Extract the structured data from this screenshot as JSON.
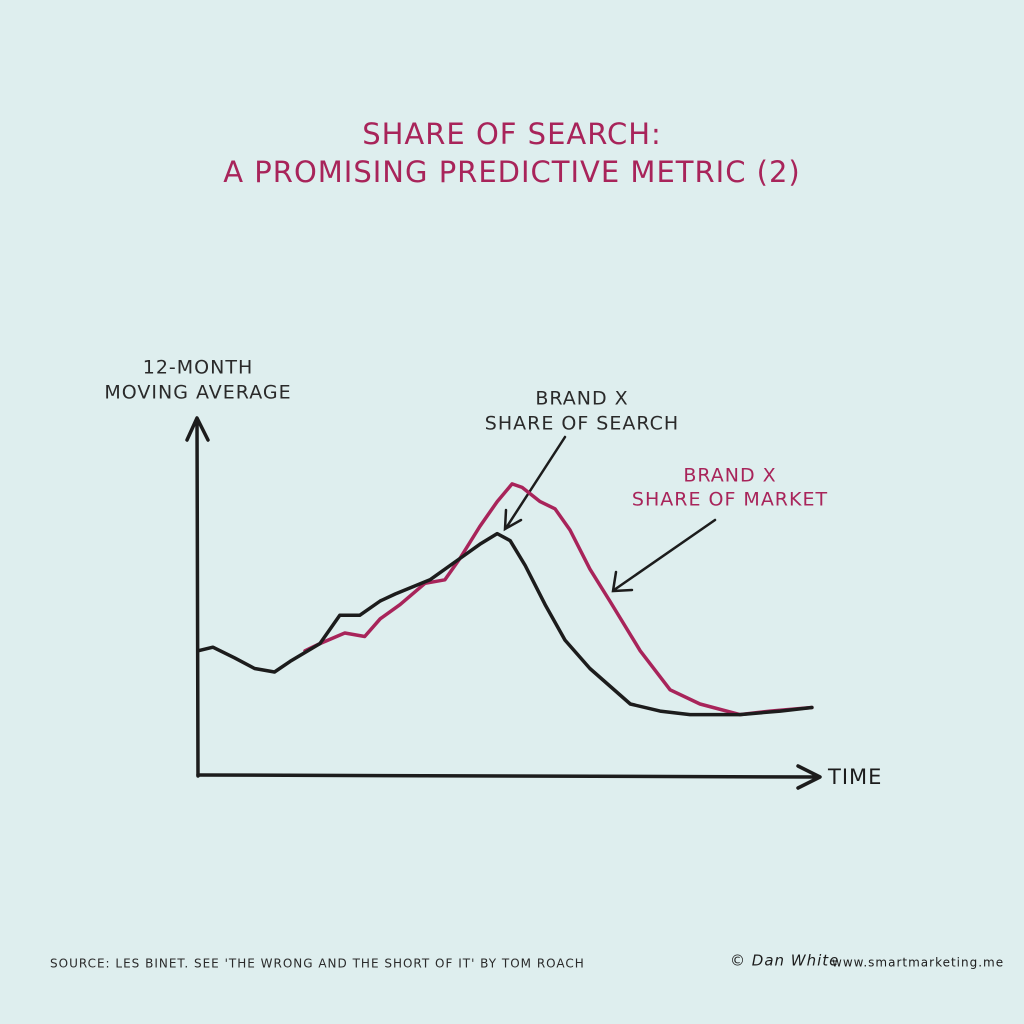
{
  "chart_data": {
    "type": "line",
    "title": [
      "SHARE OF SEARCH:",
      "A PROMISING PREDICTIVE METRIC (2)"
    ],
    "y_label": [
      "12-MONTH",
      "MOVING AVERAGE"
    ],
    "x_label": "TIME",
    "xlim": [
      0,
      100
    ],
    "ylim": [
      0,
      100
    ],
    "series": [
      {
        "label": [
          "BRAND X",
          "SHARE OF SEARCH"
        ],
        "color": "#1c1c1c",
        "x": [
          0,
          2.4,
          5.9,
          9.1,
          12.3,
          14.8,
          19.6,
          22.8,
          26,
          29.3,
          31.7,
          37.3,
          42.1,
          45.3,
          48.1,
          50.2,
          52.6,
          55.8,
          59,
          63,
          69.5,
          74.3,
          79.1,
          87.1,
          93.6,
          98.7
        ],
        "values": [
          35,
          36,
          33,
          30,
          29,
          32,
          37,
          45,
          45,
          49,
          51,
          55,
          61,
          65,
          68,
          66,
          59,
          48,
          38,
          30,
          20,
          18,
          17,
          17,
          18,
          19
        ]
      },
      {
        "label": [
          "BRAND X",
          "SHARE OF MARKET"
        ],
        "color": "#a8245a",
        "x": [
          17.2,
          19.6,
          23.6,
          26.8,
          29.3,
          32.5,
          36.5,
          39.7,
          42.1,
          45.3,
          48.1,
          50.5,
          52.1,
          55,
          57.4,
          59.8,
          63,
          66.2,
          71.1,
          75.9,
          80.7,
          87.1,
          92,
          98.7
        ],
        "values": [
          35,
          37,
          40,
          39,
          44,
          48,
          54,
          55,
          61,
          70,
          77,
          82,
          81,
          77,
          75,
          69,
          58,
          49,
          35,
          24,
          20,
          17,
          18,
          19
        ]
      }
    ],
    "source": "SOURCE: LES BINET. SEE 'THE WRONG AND THE SHORT OF IT' BY TOM ROACH",
    "credit": "© Dan White",
    "website": "www.smartmarketing.me"
  }
}
